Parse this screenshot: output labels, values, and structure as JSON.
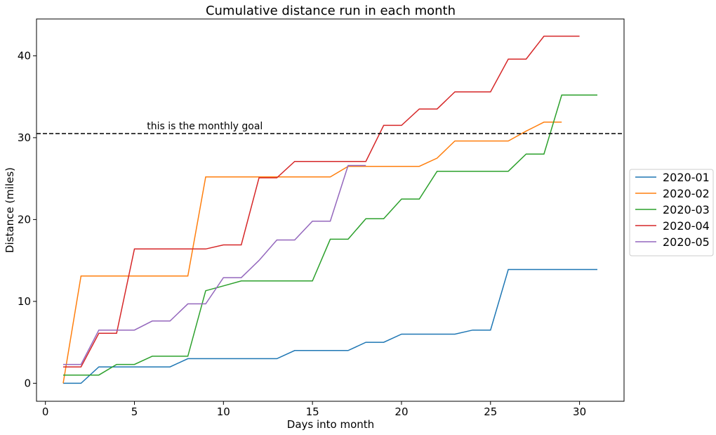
{
  "chart_data": {
    "type": "line",
    "title": "Cumulative distance run in each month",
    "xlabel": "Days into month",
    "ylabel": "Distance (miles)",
    "xlim": [
      -0.5,
      32.5
    ],
    "ylim": [
      -2.2,
      44.5
    ],
    "xticks": [
      0,
      5,
      10,
      15,
      20,
      25,
      30
    ],
    "yticks": [
      0,
      10,
      20,
      30,
      40
    ],
    "grid": false,
    "legend_position": "center-right outside plot",
    "goal_line": {
      "y": 30.5,
      "style": "dashed",
      "color": "#000000"
    },
    "annotation": {
      "text": "this is the monthly goal",
      "x": 5.7,
      "y": 30.5
    },
    "series": [
      {
        "name": "2020-01",
        "color": "#1f77b4",
        "x": [
          1,
          2,
          3,
          4,
          5,
          6,
          7,
          8,
          9,
          10,
          11,
          12,
          13,
          14,
          15,
          16,
          17,
          18,
          19,
          20,
          21,
          22,
          23,
          24,
          25,
          26,
          27,
          28,
          29,
          30,
          31
        ],
        "values": [
          0,
          0,
          2,
          2,
          2,
          2,
          2,
          3,
          3,
          3,
          3,
          3,
          3,
          4,
          4,
          4,
          4,
          5,
          5,
          6,
          6,
          6,
          6,
          6.5,
          6.5,
          13.9,
          13.9,
          13.9,
          13.9,
          13.9,
          13.9
        ]
      },
      {
        "name": "2020-02",
        "color": "#ff7f0e",
        "x": [
          1,
          2,
          3,
          4,
          5,
          6,
          7,
          8,
          9,
          10,
          11,
          12,
          13,
          14,
          15,
          16,
          17,
          18,
          19,
          20,
          21,
          22,
          23,
          24,
          25,
          26,
          27,
          28,
          29
        ],
        "values": [
          0,
          13.1,
          13.1,
          13.1,
          13.1,
          13.1,
          13.1,
          13.1,
          25.2,
          25.2,
          25.2,
          25.2,
          25.2,
          25.2,
          25.2,
          25.2,
          26.5,
          26.5,
          26.5,
          26.5,
          26.5,
          27.5,
          29.6,
          29.6,
          29.6,
          29.6,
          30.8,
          31.9,
          31.9
        ]
      },
      {
        "name": "2020-03",
        "color": "#2ca02c",
        "x": [
          1,
          2,
          3,
          4,
          5,
          6,
          7,
          8,
          9,
          10,
          11,
          12,
          13,
          14,
          15,
          16,
          17,
          18,
          19,
          20,
          21,
          22,
          23,
          24,
          25,
          26,
          27,
          28,
          29,
          30,
          31
        ],
        "values": [
          1,
          1,
          1,
          2.3,
          2.3,
          3.3,
          3.3,
          3.3,
          11.3,
          11.9,
          12.5,
          12.5,
          12.5,
          12.5,
          12.5,
          17.6,
          17.6,
          20.1,
          20.1,
          22.5,
          22.5,
          25.9,
          25.9,
          25.9,
          25.9,
          25.9,
          28,
          28,
          35.2,
          35.2,
          35.2
        ]
      },
      {
        "name": "2020-04",
        "color": "#d62728",
        "x": [
          1,
          2,
          3,
          4,
          5,
          6,
          7,
          8,
          9,
          10,
          11,
          12,
          13,
          14,
          15,
          16,
          17,
          18,
          19,
          20,
          21,
          22,
          23,
          24,
          25,
          26,
          27,
          28,
          29,
          30
        ],
        "values": [
          2,
          2,
          6.1,
          6.1,
          16.4,
          16.4,
          16.4,
          16.4,
          16.4,
          16.9,
          16.9,
          25.1,
          25.1,
          27.1,
          27.1,
          27.1,
          27.1,
          27.1,
          31.5,
          31.5,
          33.5,
          33.5,
          35.6,
          35.6,
          35.6,
          39.6,
          39.6,
          42.4,
          42.4,
          42.4
        ]
      },
      {
        "name": "2020-05",
        "color": "#9467bd",
        "x": [
          1,
          2,
          3,
          4,
          5,
          6,
          7,
          8,
          9,
          10,
          11,
          12,
          13,
          14,
          15,
          16,
          17,
          18
        ],
        "values": [
          2.3,
          2.3,
          6.5,
          6.5,
          6.5,
          7.6,
          7.6,
          9.7,
          9.7,
          12.9,
          12.9,
          15,
          17.5,
          17.5,
          19.8,
          19.8,
          26.6,
          26.6
        ]
      }
    ]
  }
}
